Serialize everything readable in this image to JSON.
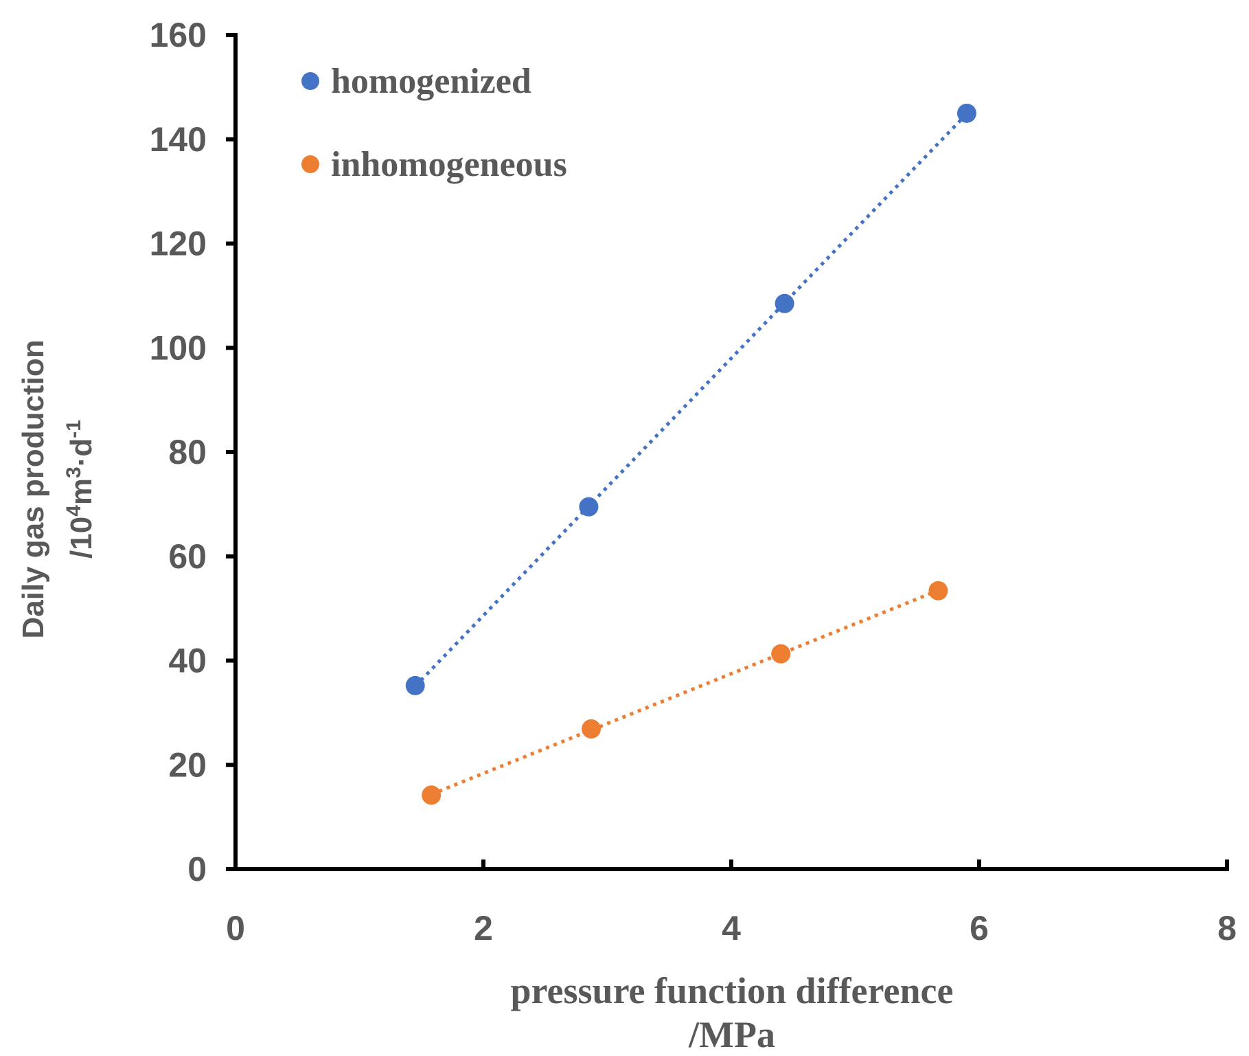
{
  "chart_data": {
    "type": "scatter",
    "title": "",
    "xlabel": [
      "pressure function difference",
      "/MPa"
    ],
    "ylabel": {
      "line1": "Daily gas production",
      "line2_prefix": "/10",
      "line2_sup1": "4",
      "line2_mid": "m",
      "line2_sup2": "3",
      "line2_mid2": "·d",
      "line2_sup3": "-1"
    },
    "xlim": [
      0,
      8
    ],
    "ylim": [
      0,
      160
    ],
    "xticks": [
      0,
      2,
      4,
      6,
      8
    ],
    "yticks": [
      0,
      20,
      40,
      60,
      80,
      100,
      120,
      140,
      160
    ],
    "grid": false,
    "legend_position": "top-left",
    "trendline": "linear, dotted",
    "series": [
      {
        "name": "homogenized",
        "color": "#4472C4",
        "x": [
          1.45,
          2.85,
          4.43,
          5.9
        ],
        "y": [
          35.2,
          69.5,
          108.5,
          145.0
        ]
      },
      {
        "name": "inhomogeneous",
        "color": "#ED7D31",
        "x": [
          1.58,
          2.87,
          4.4,
          5.67
        ],
        "y": [
          14.2,
          26.9,
          41.3,
          53.4
        ]
      }
    ]
  }
}
